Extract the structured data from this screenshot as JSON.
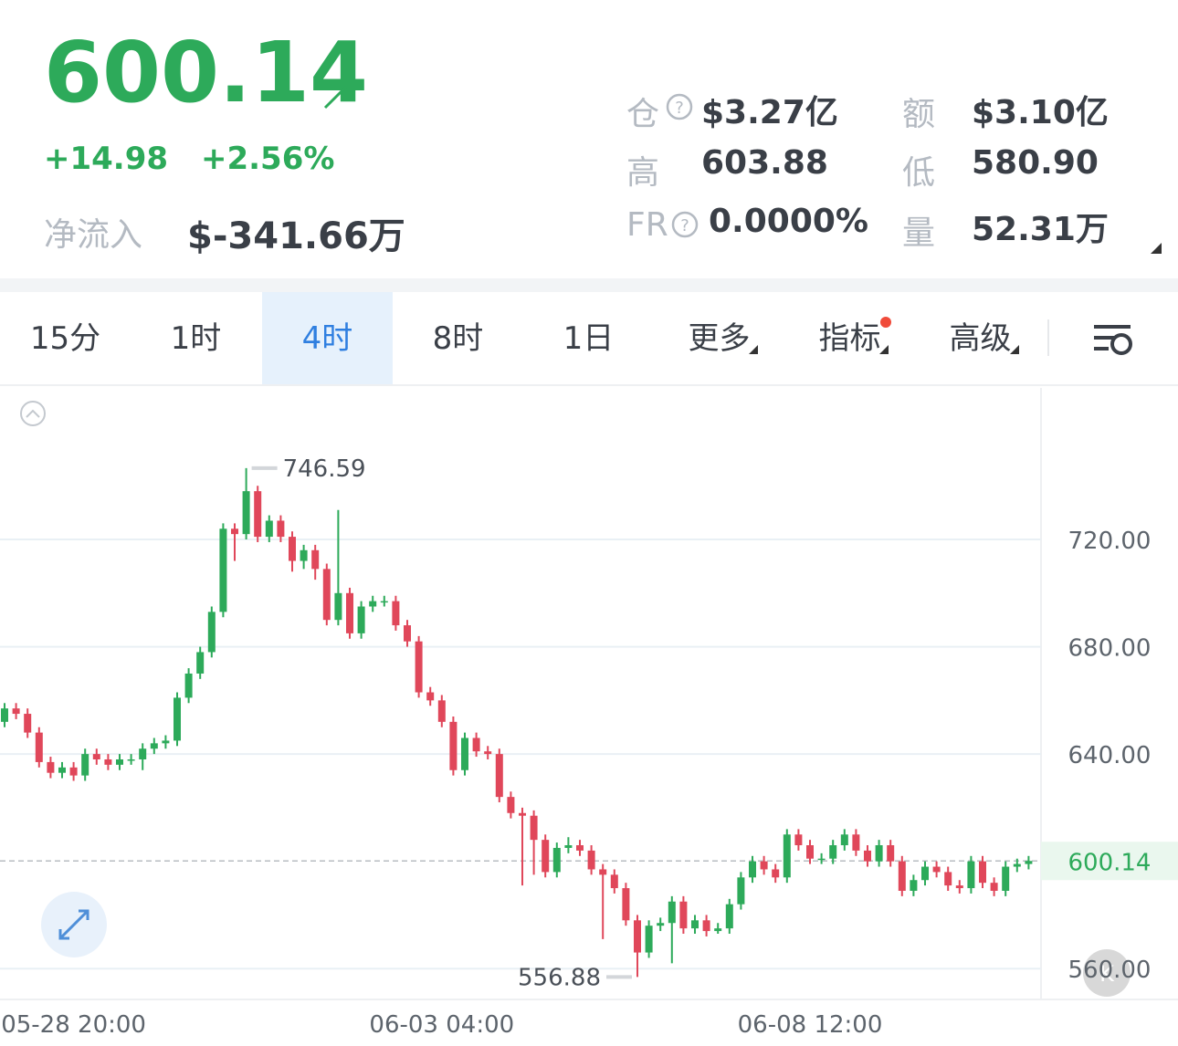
{
  "header": {
    "price": "600.14",
    "change": "+14.98",
    "change_pct": "+2.56%",
    "netflow_label": "净流入",
    "netflow": "$-341.66万",
    "stats": [
      {
        "label": "仓",
        "value": "$3.27亿"
      },
      {
        "label": "额",
        "value": "$3.10亿"
      },
      {
        "label": "高",
        "value": "603.88"
      },
      {
        "label": "低",
        "value": "580.90"
      },
      {
        "label": "FR",
        "value": "0.0000%"
      },
      {
        "label": "量",
        "value": "52.31万"
      }
    ]
  },
  "tabs": [
    "15分",
    "1时",
    "4时",
    "8时",
    "1日",
    "更多",
    "指标",
    "高级"
  ],
  "chart_data": {
    "type": "candlestick",
    "up_color": "#2daa5a",
    "down_color": "#e0475a",
    "grid": true,
    "ylim": [
      548.5,
      776.5
    ],
    "yticks": [
      {
        "value": 560,
        "label": "560.00"
      },
      {
        "value": 640,
        "label": "640.00"
      },
      {
        "value": 680,
        "label": "680.00"
      },
      {
        "value": 720,
        "label": "720.00"
      }
    ],
    "current_price": {
      "value": 600.14,
      "label": "600.14"
    },
    "categories": [
      null,
      null,
      null,
      null,
      null,
      null,
      "05-28 20:00",
      null,
      null,
      null,
      null,
      null,
      null,
      null,
      null,
      null,
      null,
      null,
      null,
      null,
      null,
      null,
      null,
      null,
      null,
      null,
      null,
      null,
      null,
      null,
      null,
      null,
      null,
      null,
      null,
      null,
      null,
      null,
      "06-03 04:00",
      null,
      null,
      null,
      null,
      null,
      null,
      null,
      null,
      null,
      null,
      null,
      null,
      null,
      null,
      null,
      null,
      null,
      null,
      null,
      null,
      null,
      null,
      null,
      null,
      null,
      null,
      null,
      null,
      null,
      null,
      null,
      "06-08 12:00",
      null,
      null,
      null,
      null,
      null,
      null,
      null,
      null,
      null,
      null,
      null,
      null,
      null,
      null,
      null,
      null,
      null,
      null,
      null
    ],
    "open": [
      652,
      657,
      655,
      648,
      637,
      633,
      635,
      632,
      640,
      638,
      636,
      638,
      638,
      642,
      644,
      645,
      661,
      670,
      678,
      693,
      724,
      722,
      738,
      721,
      727,
      721,
      712,
      716,
      709,
      690,
      700,
      685,
      695,
      697,
      697,
      688,
      682,
      663,
      660,
      652,
      634,
      646,
      641,
      640,
      624,
      618,
      617,
      608,
      596,
      605,
      606,
      604,
      597,
      595,
      590,
      578,
      566,
      576,
      577,
      585,
      575,
      578,
      574,
      575,
      584,
      594,
      600,
      597,
      594,
      610,
      606,
      601,
      601,
      606,
      610,
      604,
      600,
      606,
      600,
      589,
      593,
      598,
      596,
      591,
      590,
      600,
      592,
      589,
      598,
      599
    ],
    "high": [
      659,
      659,
      657,
      650,
      639,
      637,
      637,
      642,
      642,
      640,
      640,
      640,
      644,
      646,
      647,
      663,
      672,
      680,
      695,
      726,
      726,
      746.59,
      740,
      729,
      729,
      723,
      718,
      718,
      711,
      731,
      702,
      697,
      699,
      699,
      699,
      690,
      684,
      665,
      662,
      654,
      648,
      648,
      643,
      642,
      626,
      620,
      619,
      610,
      607,
      609,
      608,
      606,
      599,
      597,
      592,
      580,
      578,
      579,
      587,
      587,
      580,
      580,
      577,
      586,
      596,
      602,
      602,
      599,
      612,
      612,
      608,
      603,
      608,
      612,
      612,
      606,
      608,
      608,
      602,
      595,
      600,
      600,
      598,
      593,
      602,
      602,
      594,
      600,
      601,
      602
    ],
    "low": [
      650,
      653,
      646,
      635,
      631,
      631,
      630,
      630,
      636,
      634,
      634,
      636,
      634,
      640,
      642,
      643,
      659,
      668,
      676,
      691,
      712,
      720,
      719,
      719,
      719,
      708,
      709,
      705,
      688,
      688,
      683,
      683,
      693,
      695,
      686,
      680,
      661,
      658,
      650,
      632,
      632,
      639,
      638,
      622,
      616,
      591,
      595,
      594,
      594,
      603,
      602,
      595,
      571,
      588,
      576,
      556.88,
      564,
      574,
      562,
      573,
      573,
      572,
      573,
      573,
      582,
      592,
      595,
      592,
      592,
      604,
      599,
      599,
      599,
      604,
      602,
      598,
      598,
      598,
      587,
      587,
      591,
      594,
      589,
      588,
      588,
      590,
      587,
      587,
      596,
      597
    ],
    "close": [
      657,
      655,
      648,
      637,
      633,
      635,
      632,
      640,
      638,
      636,
      638,
      638,
      642,
      644,
      645,
      661,
      670,
      678,
      693,
      724,
      722,
      738,
      721,
      727,
      721,
      712,
      716,
      709,
      690,
      700,
      685,
      695,
      697,
      697,
      688,
      682,
      663,
      660,
      652,
      634,
      646,
      641,
      640,
      624,
      618,
      617,
      608,
      596,
      605,
      606,
      604,
      597,
      595,
      590,
      578,
      566,
      576,
      577,
      585,
      575,
      578,
      574,
      575,
      584,
      594,
      600,
      597,
      594,
      610,
      606,
      601,
      601,
      606,
      610,
      604,
      600,
      606,
      600,
      589,
      593,
      598,
      596,
      591,
      590,
      600,
      592,
      589,
      598,
      599,
      600.14
    ]
  }
}
